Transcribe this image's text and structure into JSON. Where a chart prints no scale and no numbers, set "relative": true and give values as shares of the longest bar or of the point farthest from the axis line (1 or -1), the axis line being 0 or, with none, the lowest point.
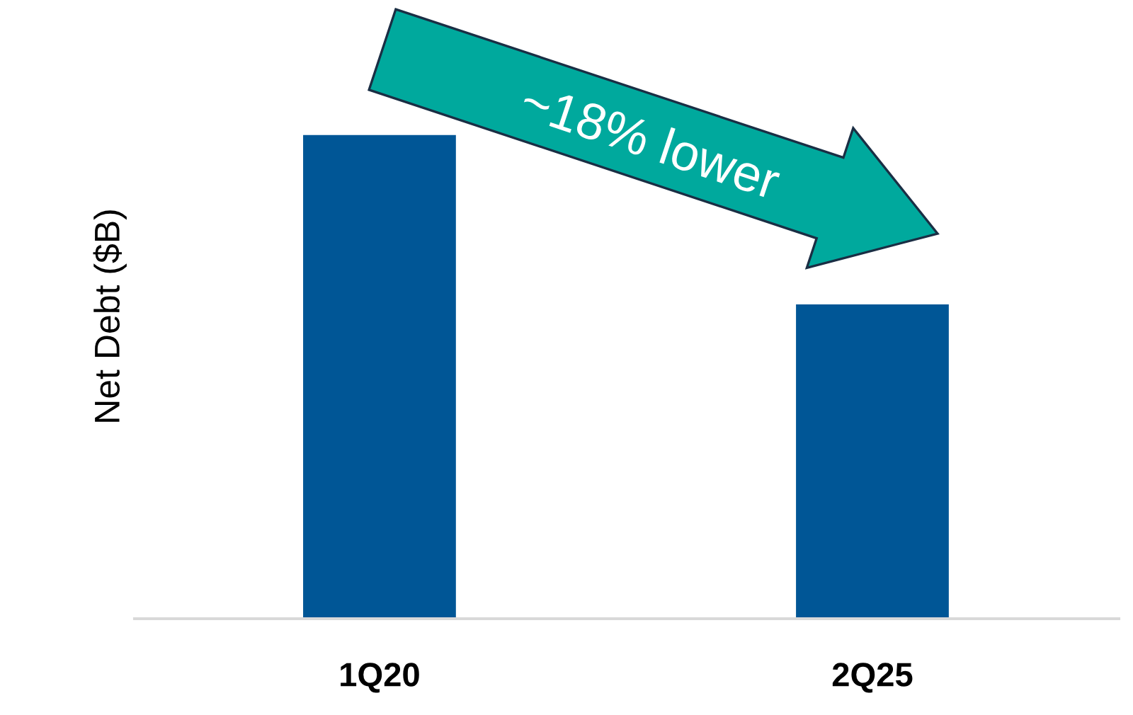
{
  "chart_data": {
    "type": "bar",
    "relative": true,
    "ylabel": "Net Debt ($B)",
    "categories": [
      "1Q20",
      "2Q25"
    ],
    "values": [
      1,
      0.65
    ],
    "color": "#005696",
    "annotations": [
      "~18% lower"
    ],
    "grid": false
  }
}
